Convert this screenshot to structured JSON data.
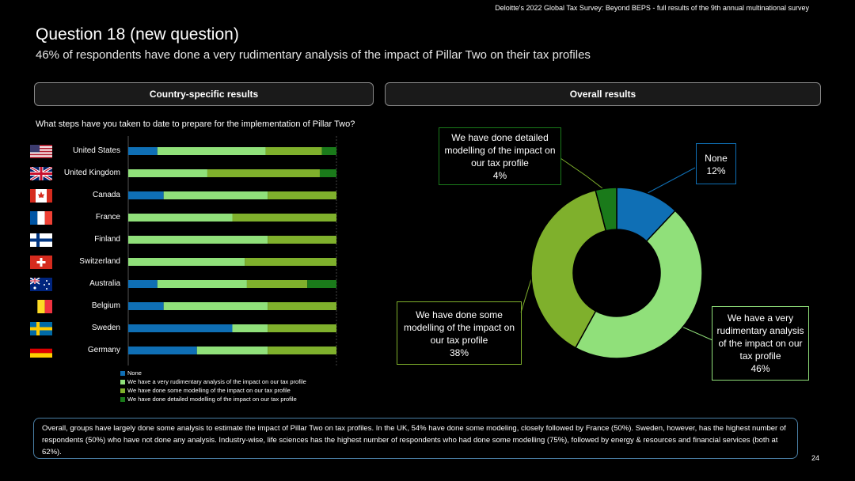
{
  "header": {
    "source": "Deloitte's 2022 Global Tax Survey: Beyond BEPS  - full results of the 9th annual multinational survey",
    "title": "Question 18 (new question)",
    "subtitle": "46% of respondents have done a very rudimentary analysis of the impact of Pillar Two on their tax profiles"
  },
  "tabs": {
    "country": "Country-specific results",
    "overall": "Overall results"
  },
  "question": "What steps have you taken to date to prepare for the implementation of Pillar Two?",
  "colors": {
    "none": "#0f6fb5",
    "rudimentary": "#90e07a",
    "some": "#7fb02c",
    "detailed": "#1a7a1a"
  },
  "chart_data": [
    {
      "type": "bar",
      "orientation": "horizontal-stacked",
      "categories": [
        "United States",
        "United Kingdom",
        "Canada",
        "France",
        "Finland",
        "Switzerland",
        "Australia",
        "Belgium",
        "Sweden",
        "Germany"
      ],
      "flags": [
        "us-flag-icon",
        "uk-flag-icon",
        "canada-flag-icon",
        "france-flag-icon",
        "finland-flag-icon",
        "switzerland-flag-icon",
        "australia-flag-icon",
        "belgium-flag-icon",
        "sweden-flag-icon",
        "germany-flag-icon"
      ],
      "series": [
        {
          "name": "None",
          "values": [
            14,
            0,
            17,
            0,
            0,
            0,
            14,
            17,
            50,
            33
          ]
        },
        {
          "name": "We have a very rudimentary analysis of the impact on our tax profile",
          "values": [
            52,
            38,
            50,
            50,
            67,
            56,
            43,
            50,
            17,
            34
          ]
        },
        {
          "name": "We have done some modelling of the impact on our tax profile",
          "values": [
            27,
            54,
            33,
            50,
            33,
            44,
            29,
            33,
            33,
            33
          ]
        },
        {
          "name": "We have done detailed modelling of the impact on our tax profile",
          "values": [
            7,
            8,
            0,
            0,
            0,
            0,
            14,
            0,
            0,
            0
          ]
        }
      ],
      "xlim": [
        0,
        100
      ]
    },
    {
      "type": "pie",
      "style": "donut",
      "labels": [
        "None",
        "We have a very rudimentary analysis of the impact on our tax profile",
        "We have done some modelling of the impact on our tax profile",
        "We have done detailed modelling of the impact on our tax profile"
      ],
      "values": [
        12,
        46,
        38,
        4
      ],
      "callouts": {
        "none": {
          "text": "None",
          "pct": "12%"
        },
        "rudimentary": {
          "text1": "We have a very",
          "text2": "rudimentary analysis",
          "text3": "of the impact on our",
          "text4": "tax profile",
          "pct": "46%"
        },
        "some": {
          "text1": "We have done some",
          "text2": "modelling of the impact on",
          "text3": "our tax profile",
          "pct": "38%"
        },
        "detailed": {
          "text1": "We have done detailed",
          "text2": "modelling of the impact on",
          "text3": "our tax profile",
          "pct": "4%"
        }
      }
    }
  ],
  "summary": "Overall, groups have largely done some analysis to estimate the impact of Pillar Two on tax profiles. In the UK, 54% have done some modeling, closely followed by France (50%). Sweden, however, has the highest number of respondents (50%) who have not done any analysis. Industry-wise, life sciences has the highest number of respondents who had done some modelling (75%), followed by  energy & resources and financial services (both at 62%).",
  "page_number": "24"
}
